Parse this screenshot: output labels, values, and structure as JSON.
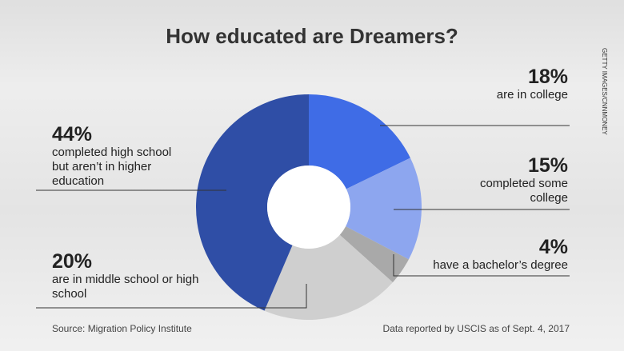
{
  "chart_data": {
    "type": "donut",
    "title": "How educated are Dreamers?",
    "categories": [
      "are in college",
      "completed some college",
      "have a bachelor’s degree",
      "are in middle school or high school",
      "completed high school but aren’t in higher education"
    ],
    "values": [
      18,
      15,
      4,
      20,
      44
    ],
    "value_labels": [
      "18%",
      "15%",
      "4%",
      "20%",
      "44%"
    ],
    "colors": [
      "#3f6ce6",
      "#8da6ef",
      "#a9a9a9",
      "#cfcfcf",
      "#2f4ea6"
    ],
    "source": "Source: Migration Policy Institute",
    "note": "Data reported by USCIS as of Sept. 4, 2017",
    "credit": "GETTY IMAGES/CNNMONEY"
  }
}
